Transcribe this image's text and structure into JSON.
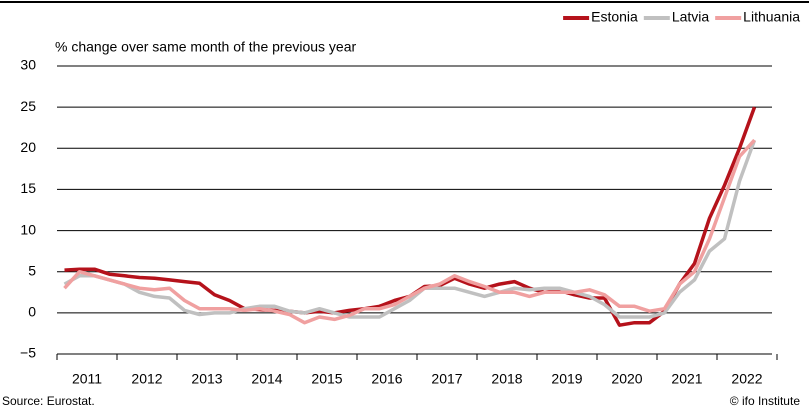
{
  "chart_data": {
    "type": "line",
    "subtitle": "% change over same month of the previous year",
    "source": "Source: Eurostat.",
    "credit": "© ifo Institute",
    "legend": "top-right",
    "grid": true,
    "categories": [
      "2011",
      null,
      null,
      null,
      "2012",
      null,
      null,
      null,
      "2013",
      null,
      null,
      null,
      "2014",
      null,
      null,
      null,
      "2015",
      null,
      null,
      null,
      "2016",
      null,
      null,
      null,
      "2017",
      null,
      null,
      null,
      "2018",
      null,
      null,
      null,
      "2019",
      null,
      null,
      null,
      "2020",
      null,
      null,
      null,
      "2021",
      null,
      null,
      null,
      "2022",
      null,
      null
    ],
    "ylim": [
      -5,
      30
    ],
    "yticks": [
      {
        "value": -5,
        "label": "−5"
      },
      0,
      5,
      10,
      15,
      20,
      25,
      30
    ],
    "series": [
      {
        "name": "Estonia",
        "color": "#b5121b",
        "values": [
          5.2,
          5.3,
          5.3,
          4.7,
          4.5,
          4.3,
          4.2,
          4.0,
          3.8,
          3.6,
          2.2,
          1.5,
          0.5,
          0.4,
          0.3,
          0.2,
          0.0,
          0.2,
          0.0,
          0.3,
          0.5,
          0.8,
          1.5,
          2.0,
          3.2,
          3.3,
          4.2,
          3.5,
          3.0,
          3.5,
          3.8,
          3.0,
          2.5,
          2.7,
          2.2,
          1.8,
          1.8,
          -1.5,
          -1.2,
          -1.2,
          0.2,
          3.5,
          6.0,
          11.5,
          15.5,
          20.0,
          25.0
        ]
      },
      {
        "name": "Latvia",
        "color": "#c0c0c0",
        "values": [
          3.5,
          4.5,
          4.5,
          4.0,
          3.5,
          2.5,
          2.0,
          1.8,
          0.3,
          -0.2,
          0.0,
          0.0,
          0.5,
          0.8,
          0.8,
          0.2,
          0.0,
          0.5,
          0.0,
          -0.5,
          -0.5,
          -0.5,
          0.5,
          1.5,
          3.0,
          3.0,
          3.0,
          2.5,
          2.0,
          2.5,
          3.0,
          2.8,
          3.0,
          3.0,
          2.5,
          2.0,
          1.0,
          -0.5,
          -0.5,
          -0.5,
          0.0,
          2.5,
          4.0,
          7.5,
          9.0,
          16.0,
          21.0
        ]
      },
      {
        "name": "Lithuania",
        "color": "#f0a0a0",
        "values": [
          3.0,
          5.0,
          4.5,
          4.0,
          3.5,
          3.0,
          2.8,
          3.0,
          1.5,
          0.5,
          0.5,
          0.5,
          0.3,
          0.5,
          0.2,
          -0.2,
          -1.2,
          -0.5,
          -0.8,
          -0.3,
          0.5,
          0.5,
          1.0,
          2.0,
          3.0,
          3.5,
          4.5,
          3.8,
          3.2,
          2.5,
          2.5,
          2.0,
          2.5,
          2.5,
          2.5,
          2.8,
          2.2,
          0.8,
          0.8,
          0.2,
          0.5,
          3.5,
          5.0,
          9.0,
          14.0,
          19.0,
          21.0
        ]
      }
    ]
  }
}
